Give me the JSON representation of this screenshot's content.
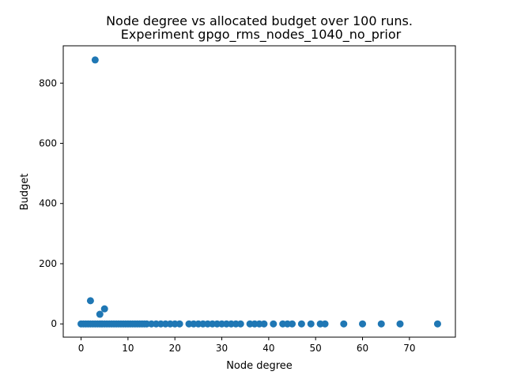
{
  "chart_data": {
    "type": "scatter",
    "title": "Node degree vs allocated budget over 100 runs.",
    "subtitle": "Experiment gpgo_rms_nodes_1040_no_prior",
    "xlabel": "Node degree",
    "ylabel": "Budget",
    "xlim": [
      -3.8,
      79.8
    ],
    "ylim": [
      -44,
      924
    ],
    "xticks": [
      0,
      10,
      20,
      30,
      40,
      50,
      60,
      70
    ],
    "yticks": [
      0,
      200,
      400,
      600,
      800
    ],
    "grid": false,
    "marker_color": "#1f77b4",
    "points": [
      {
        "x": 0,
        "y": 0
      },
      {
        "x": 0.5,
        "y": 0
      },
      {
        "x": 1,
        "y": 0
      },
      {
        "x": 1.5,
        "y": 0
      },
      {
        "x": 2,
        "y": 0
      },
      {
        "x": 2,
        "y": 77
      },
      {
        "x": 2.5,
        "y": 0
      },
      {
        "x": 3,
        "y": 877
      },
      {
        "x": 3,
        "y": 0
      },
      {
        "x": 3.5,
        "y": 0
      },
      {
        "x": 4,
        "y": 32
      },
      {
        "x": 4,
        "y": 0
      },
      {
        "x": 4.5,
        "y": 0
      },
      {
        "x": 5,
        "y": 50
      },
      {
        "x": 5,
        "y": 0
      },
      {
        "x": 5.5,
        "y": 0
      },
      {
        "x": 6,
        "y": 0
      },
      {
        "x": 6.5,
        "y": 0
      },
      {
        "x": 7,
        "y": 0
      },
      {
        "x": 7.5,
        "y": 0
      },
      {
        "x": 8,
        "y": 0
      },
      {
        "x": 8.5,
        "y": 0
      },
      {
        "x": 9,
        "y": 0
      },
      {
        "x": 9.5,
        "y": 0
      },
      {
        "x": 10,
        "y": 0
      },
      {
        "x": 10.5,
        "y": 0
      },
      {
        "x": 11,
        "y": 0
      },
      {
        "x": 11.5,
        "y": 0
      },
      {
        "x": 12,
        "y": 0
      },
      {
        "x": 12.5,
        "y": 0
      },
      {
        "x": 13,
        "y": 0
      },
      {
        "x": 13.5,
        "y": 0
      },
      {
        "x": 14,
        "y": 0
      },
      {
        "x": 15,
        "y": 0
      },
      {
        "x": 16,
        "y": 0
      },
      {
        "x": 17,
        "y": 0
      },
      {
        "x": 18,
        "y": 0
      },
      {
        "x": 19,
        "y": 0
      },
      {
        "x": 20,
        "y": 0
      },
      {
        "x": 21,
        "y": 0
      },
      {
        "x": 23,
        "y": 0
      },
      {
        "x": 24,
        "y": 0
      },
      {
        "x": 25,
        "y": 0
      },
      {
        "x": 26,
        "y": 0
      },
      {
        "x": 27,
        "y": 0
      },
      {
        "x": 28,
        "y": 0
      },
      {
        "x": 29,
        "y": 0
      },
      {
        "x": 30,
        "y": 0
      },
      {
        "x": 31,
        "y": 0
      },
      {
        "x": 32,
        "y": 0
      },
      {
        "x": 33,
        "y": 0
      },
      {
        "x": 34,
        "y": 0
      },
      {
        "x": 36,
        "y": 0
      },
      {
        "x": 37,
        "y": 0
      },
      {
        "x": 38,
        "y": 0
      },
      {
        "x": 39,
        "y": 0
      },
      {
        "x": 41,
        "y": 0
      },
      {
        "x": 43,
        "y": 0
      },
      {
        "x": 44,
        "y": 0
      },
      {
        "x": 45,
        "y": 0
      },
      {
        "x": 47,
        "y": 0
      },
      {
        "x": 49,
        "y": 0
      },
      {
        "x": 51,
        "y": 0
      },
      {
        "x": 52,
        "y": 0
      },
      {
        "x": 56,
        "y": 0
      },
      {
        "x": 60,
        "y": 0
      },
      {
        "x": 64,
        "y": 0
      },
      {
        "x": 68,
        "y": 0
      },
      {
        "x": 76,
        "y": 0
      }
    ]
  }
}
